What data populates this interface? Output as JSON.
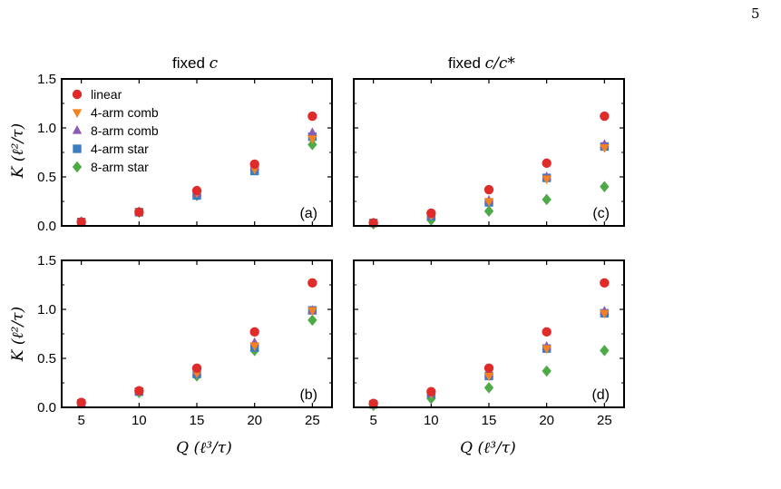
{
  "page_number": "5",
  "column_titles": [
    {
      "prefix": "fixed ",
      "math": "c"
    },
    {
      "prefix": "fixed ",
      "math": "c/c*"
    }
  ],
  "ylabel": "K (ℓ²/τ)",
  "xlabel": "Q (ℓ³/τ)",
  "legend": {
    "placement": "top-left of panel (a)",
    "entries": [
      "linear",
      "4-arm comb",
      "8-arm comb",
      "4-arm star",
      "8-arm star"
    ]
  },
  "colors": {
    "linear": "#e02b2b",
    "4-arm comb": "#f5821f",
    "8-arm comb": "#8e5bb0",
    "4-arm star": "#3a7dc0",
    "8-arm star": "#4daa47"
  },
  "markers": {
    "linear": "circle",
    "4-arm comb": "triangle-down",
    "8-arm comb": "triangle-up",
    "4-arm star": "square",
    "8-arm star": "diamond"
  },
  "chart_data": [
    {
      "type": "scatter",
      "panel_label": "(a)",
      "x": [
        5,
        10,
        15,
        20,
        25
      ],
      "xlim": [
        3.3,
        26.7
      ],
      "ylim": [
        0,
        1.5
      ],
      "xticks": [
        5,
        10,
        15,
        20,
        25
      ],
      "yticks": [
        "0.0",
        "0.5",
        "1.0",
        "1.5"
      ],
      "series": [
        {
          "name": "linear",
          "values": [
            0.04,
            0.14,
            0.36,
            0.63,
            1.12
          ]
        },
        {
          "name": "4-arm comb",
          "values": [
            0.04,
            0.14,
            0.34,
            0.58,
            0.89
          ]
        },
        {
          "name": "8-arm comb",
          "values": [
            0.04,
            0.14,
            0.33,
            0.6,
            0.95
          ]
        },
        {
          "name": "4-arm star",
          "values": [
            0.04,
            0.14,
            0.31,
            0.56,
            0.91
          ]
        },
        {
          "name": "8-arm star",
          "values": [
            0.04,
            0.14,
            0.31,
            0.58,
            0.83
          ]
        }
      ]
    },
    {
      "type": "scatter",
      "panel_label": "(c)",
      "x": [
        5,
        10,
        15,
        20,
        25
      ],
      "xlim": [
        3.3,
        26.7
      ],
      "ylim": [
        0,
        1.5
      ],
      "xticks": [
        5,
        10,
        15,
        20,
        25
      ],
      "yticks": [
        "0.0",
        "0.5",
        "1.0",
        "1.5"
      ],
      "series": [
        {
          "name": "linear",
          "values": [
            0.03,
            0.13,
            0.37,
            0.64,
            1.12
          ]
        },
        {
          "name": "4-arm comb",
          "values": [
            0.03,
            0.11,
            0.25,
            0.48,
            0.8
          ]
        },
        {
          "name": "8-arm comb",
          "values": [
            0.03,
            0.11,
            0.26,
            0.5,
            0.83
          ]
        },
        {
          "name": "4-arm star",
          "values": [
            0.03,
            0.1,
            0.24,
            0.49,
            0.81
          ]
        },
        {
          "name": "8-arm star",
          "values": [
            0.02,
            0.06,
            0.15,
            0.27,
            0.4
          ]
        }
      ]
    },
    {
      "type": "scatter",
      "panel_label": "(b)",
      "x": [
        5,
        10,
        15,
        20,
        25
      ],
      "xlim": [
        3.3,
        26.7
      ],
      "ylim": [
        0,
        1.5
      ],
      "xticks": [
        5,
        10,
        15,
        20,
        25
      ],
      "yticks": [
        "0.0",
        "0.5",
        "1.0",
        "1.5"
      ],
      "series": [
        {
          "name": "linear",
          "values": [
            0.05,
            0.17,
            0.4,
            0.77,
            1.27
          ]
        },
        {
          "name": "4-arm comb",
          "values": [
            0.04,
            0.16,
            0.35,
            0.63,
            0.99
          ]
        },
        {
          "name": "8-arm comb",
          "values": [
            0.04,
            0.16,
            0.36,
            0.66,
            0.99
          ]
        },
        {
          "name": "4-arm star",
          "values": [
            0.04,
            0.16,
            0.34,
            0.61,
            0.99
          ]
        },
        {
          "name": "8-arm star",
          "values": [
            0.04,
            0.15,
            0.32,
            0.58,
            0.89
          ]
        }
      ]
    },
    {
      "type": "scatter",
      "panel_label": "(d)",
      "x": [
        5,
        10,
        15,
        20,
        25
      ],
      "xlim": [
        3.3,
        26.7
      ],
      "ylim": [
        0,
        1.5
      ],
      "xticks": [
        5,
        10,
        15,
        20,
        25
      ],
      "yticks": [
        "0.0",
        "0.5",
        "1.0",
        "1.5"
      ],
      "series": [
        {
          "name": "linear",
          "values": [
            0.04,
            0.16,
            0.4,
            0.77,
            1.27
          ]
        },
        {
          "name": "4-arm comb",
          "values": [
            0.03,
            0.14,
            0.32,
            0.6,
            0.96
          ]
        },
        {
          "name": "8-arm comb",
          "values": [
            0.03,
            0.15,
            0.34,
            0.62,
            0.98
          ]
        },
        {
          "name": "4-arm star",
          "values": [
            0.03,
            0.14,
            0.32,
            0.6,
            0.96
          ]
        },
        {
          "name": "8-arm star",
          "values": [
            0.02,
            0.09,
            0.2,
            0.37,
            0.58
          ]
        }
      ]
    }
  ]
}
